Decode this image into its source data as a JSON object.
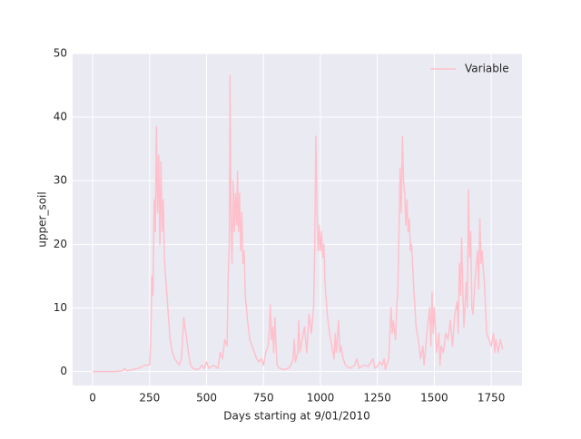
{
  "chart_data": {
    "type": "line",
    "xlabel": "Days starting at 9/01/2010",
    "ylabel": "upper_soil",
    "legend": "upper right",
    "grid": true,
    "xlim": [
      -88,
      1885
    ],
    "ylim": [
      -2.2,
      50
    ],
    "xticks": [
      0,
      250,
      500,
      750,
      1000,
      1250,
      1500,
      1750
    ],
    "yticks": [
      0,
      10,
      20,
      30,
      40,
      50
    ],
    "x": [
      0,
      50,
      100,
      130,
      140,
      150,
      200,
      230,
      250,
      255,
      260,
      265,
      270,
      275,
      280,
      285,
      290,
      295,
      300,
      305,
      310,
      315,
      320,
      330,
      340,
      350,
      360,
      370,
      380,
      390,
      400,
      405,
      410,
      420,
      430,
      440,
      460,
      470,
      480,
      490,
      500,
      510,
      530,
      550,
      560,
      570,
      580,
      590,
      595,
      600,
      603,
      607,
      612,
      617,
      622,
      627,
      632,
      636,
      640,
      645,
      650,
      655,
      660,
      665,
      670,
      680,
      690,
      700,
      710,
      720,
      730,
      740,
      750,
      760,
      770,
      775,
      780,
      785,
      790,
      795,
      800,
      805,
      810,
      820,
      840,
      860,
      870,
      880,
      885,
      890,
      900,
      905,
      910,
      920,
      930,
      940,
      950,
      960,
      970,
      975,
      980,
      985,
      990,
      995,
      1000,
      1005,
      1010,
      1015,
      1020,
      1030,
      1040,
      1050,
      1060,
      1065,
      1070,
      1080,
      1085,
      1090,
      1100,
      1110,
      1130,
      1150,
      1160,
      1170,
      1190,
      1210,
      1230,
      1240,
      1250,
      1260,
      1270,
      1280,
      1285,
      1300,
      1310,
      1315,
      1320,
      1330,
      1335,
      1340,
      1345,
      1350,
      1355,
      1360,
      1365,
      1370,
      1375,
      1380,
      1385,
      1390,
      1395,
      1400,
      1410,
      1420,
      1430,
      1440,
      1450,
      1455,
      1460,
      1470,
      1480,
      1485,
      1490,
      1495,
      1500,
      1510,
      1520,
      1525,
      1530,
      1540,
      1550,
      1560,
      1570,
      1580,
      1590,
      1600,
      1605,
      1610,
      1615,
      1620,
      1625,
      1630,
      1640,
      1645,
      1650,
      1655,
      1660,
      1665,
      1670,
      1680,
      1690,
      1695,
      1700,
      1705,
      1710,
      1715,
      1720,
      1730,
      1740,
      1750,
      1760,
      1765,
      1770,
      1780,
      1790,
      1800
    ],
    "series": [
      {
        "name": "Variable",
        "color": "#ffc0cb",
        "values": [
          0,
          0,
          0,
          0.1,
          0.5,
          0.1,
          0.5,
          1,
          1,
          5,
          15,
          12,
          27,
          22,
          38.5,
          25,
          34,
          20,
          33,
          22,
          27,
          18,
          15,
          10,
          5,
          3,
          2,
          1.5,
          1,
          2,
          8.5,
          7,
          6,
          3,
          1,
          0.5,
          0.3,
          0.5,
          1,
          0.5,
          1.5,
          0.5,
          1,
          0.5,
          3,
          2,
          5,
          4,
          15,
          20,
          46.5,
          25,
          17,
          30,
          22,
          28,
          23,
          31.5,
          22,
          28,
          19,
          25,
          17,
          19,
          12,
          8,
          5,
          4,
          3,
          2,
          1.5,
          2,
          1,
          3,
          4,
          6,
          10.5,
          5,
          7,
          3,
          8.5,
          4,
          1,
          0.5,
          0.3,
          0.5,
          1,
          2,
          5,
          1.5,
          3,
          8,
          3,
          5,
          7,
          3,
          9,
          6,
          10,
          20,
          37,
          25,
          19,
          23,
          19,
          22,
          18,
          20,
          14,
          9,
          6,
          4,
          2,
          6,
          3,
          8,
          3,
          4,
          2,
          1,
          0.5,
          1,
          2,
          0.5,
          1,
          0.8,
          2,
          0.5,
          0.8,
          1.5,
          1,
          2,
          0.3,
          2,
          10,
          6,
          8,
          5,
          10,
          13,
          22,
          32,
          25,
          37,
          30,
          28,
          23,
          27,
          22,
          24,
          19,
          20,
          13,
          7,
          5,
          2,
          4,
          1,
          3,
          7,
          10,
          4,
          12.5,
          6,
          10,
          3,
          6,
          1,
          4,
          3,
          6,
          5,
          8,
          4,
          9,
          11,
          6,
          17,
          12,
          21,
          13,
          7,
          14,
          10,
          28.5,
          18,
          22,
          10,
          9,
          15,
          19,
          13,
          24,
          17,
          19,
          16,
          14,
          6,
          5,
          4,
          6,
          3,
          5,
          3,
          5,
          3.5
        ]
      }
    ]
  }
}
